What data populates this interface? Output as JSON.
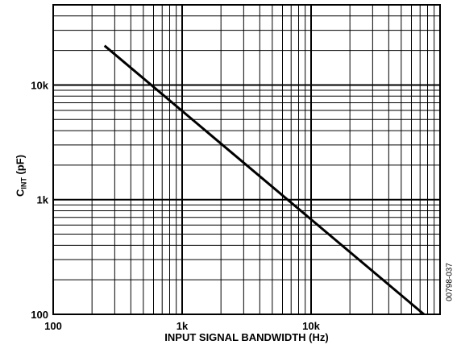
{
  "chart_data": {
    "type": "line",
    "xlabel": "INPUT SIGNAL BANDWIDTH (Hz)",
    "ylabel_main": "C",
    "ylabel_sub": "INT",
    "ylabel_suffix": " (pF)",
    "figure_id": "00798-037",
    "x_scale": "log",
    "y_scale": "log",
    "xlim": [
      100,
      100000
    ],
    "ylim": [
      100,
      50000
    ],
    "x_ticks": [
      {
        "value": 100,
        "label": "100"
      },
      {
        "value": 1000,
        "label": "1k"
      },
      {
        "value": 10000,
        "label": "10k"
      }
    ],
    "y_ticks": [
      {
        "value": 100,
        "label": "100"
      },
      {
        "value": 1000,
        "label": "1k"
      },
      {
        "value": 10000,
        "label": "10k"
      }
    ],
    "grid": true,
    "series": [
      {
        "values": [
          {
            "x": 250,
            "y": 22000
          },
          {
            "x": 75000,
            "y": 100
          }
        ]
      }
    ]
  }
}
